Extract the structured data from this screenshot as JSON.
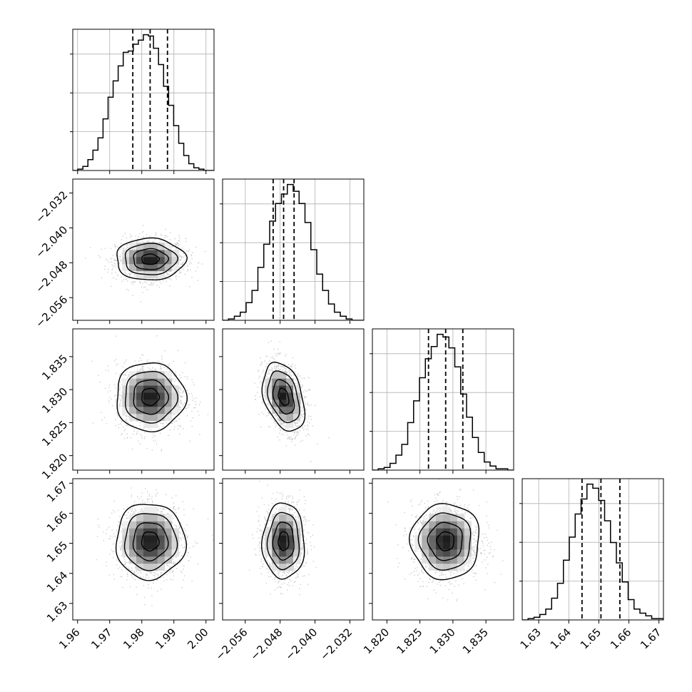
{
  "chart_data": {
    "type": "corner",
    "grid": true,
    "parameters": [
      {
        "range": [
          1.9585,
          2.0025
        ],
        "ticks": [
          "1.96",
          "1.97",
          "1.98",
          "1.99",
          "2.00"
        ],
        "tick_values": [
          1.96,
          1.97,
          1.98,
          1.99,
          2.0
        ],
        "quantiles": [
          1.9772,
          1.9826,
          1.988
        ],
        "median": 1.9826,
        "sigma": 0.0054
      },
      {
        "range": [
          -2.0612,
          -2.0288
        ],
        "ticks": [
          "−2.056",
          "−2.048",
          "−2.040",
          "−2.032"
        ],
        "tick_values": [
          -2.056,
          -2.048,
          -2.04,
          -2.032
        ],
        "quantiles": [
          -2.0496,
          -2.0472,
          -2.0448
        ],
        "median": -2.0472,
        "sigma": 0.0024
      },
      {
        "range": [
          1.8178,
          1.8392
        ],
        "ticks": [
          "1.820",
          "1.825",
          "1.830",
          "1.835"
        ],
        "tick_values": [
          1.82,
          1.825,
          1.83,
          1.835
        ],
        "quantiles": [
          1.8263,
          1.8289,
          1.8315
        ],
        "median": 1.8289,
        "sigma": 0.0026
      },
      {
        "range": [
          1.6245,
          1.6715
        ],
        "ticks": [
          "1.63",
          "1.64",
          "1.65",
          "1.66",
          "1.67"
        ],
        "tick_values": [
          1.63,
          1.64,
          1.65,
          1.66,
          1.67
        ],
        "quantiles": [
          1.6444,
          1.6507,
          1.657
        ],
        "median": 1.6507,
        "sigma": 0.0063
      }
    ],
    "correlations": [
      {
        "i": 1,
        "j": 0,
        "rho": 0.0
      },
      {
        "i": 2,
        "j": 0,
        "rho": 0.0
      },
      {
        "i": 2,
        "j": 1,
        "rho": -0.35
      },
      {
        "i": 3,
        "j": 0,
        "rho": 0.0
      },
      {
        "i": 3,
        "j": 1,
        "rho": 0.0
      },
      {
        "i": 3,
        "j": 2,
        "rho": 0.0
      }
    ],
    "histograms": [
      [
        0,
        1,
        3,
        8,
        15,
        24,
        38,
        54,
        66,
        77,
        87,
        88,
        93,
        96,
        100,
        99,
        90,
        78,
        62,
        48,
        33,
        20,
        11,
        5,
        2,
        1,
        0,
        0
      ],
      [
        0,
        1,
        3,
        6,
        13,
        22,
        39,
        56,
        73,
        86,
        93,
        100,
        95,
        86,
        72,
        52,
        34,
        22,
        12,
        6,
        3,
        1,
        0,
        0
      ],
      [
        0,
        1,
        2,
        5,
        11,
        19,
        35,
        51,
        68,
        82,
        91,
        100,
        98,
        90,
        76,
        56,
        39,
        24,
        13,
        6,
        3,
        1,
        1,
        0
      ],
      [
        0,
        1,
        2,
        4,
        8,
        16,
        27,
        44,
        61,
        78,
        89,
        100,
        97,
        88,
        73,
        57,
        42,
        28,
        15,
        8,
        5,
        3,
        1,
        1
      ]
    ]
  }
}
